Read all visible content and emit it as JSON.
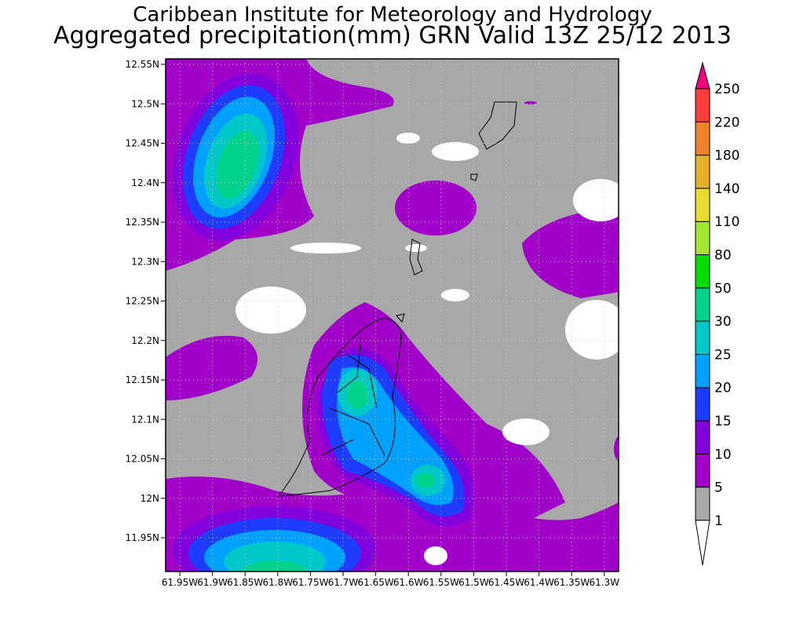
{
  "header": {
    "title_line1": "Caribbean Institute for Meteorology and Hydrology",
    "title_line2": "Aggregated precipitation(mm) GRN Valid 13Z 25/12 2013"
  },
  "map": {
    "lat_labels": [
      "12.55N",
      "12.5N",
      "12.45N",
      "12.4N",
      "12.35N",
      "12.3N",
      "12.25N",
      "12.2N",
      "12.15N",
      "12.1N",
      "12.05N",
      "12N",
      "11.95N"
    ],
    "lon_labels": [
      "61.95W",
      "61.9W",
      "61.85W",
      "61.8W",
      "61.75W",
      "61.7W",
      "61.65W",
      "61.6W",
      "61.55W",
      "61.5W",
      "61.45W",
      "61.4W",
      "61.35W",
      "61.3W"
    ]
  },
  "colorbar": {
    "levels": [
      "1",
      "5",
      "10",
      "15",
      "20",
      "25",
      "30",
      "50",
      "80",
      "110",
      "140",
      "180",
      "220",
      "250"
    ],
    "colors": [
      "#a8a8a8",
      "#a000c8",
      "#8200dc",
      "#1e3cff",
      "#00a0ff",
      "#00c8c8",
      "#00d28c",
      "#00dc00",
      "#a0e632",
      "#e6dc32",
      "#e6af2d",
      "#f08228",
      "#fa3c3c"
    ],
    "over_color": "#f00082",
    "under_color": "#ffffff"
  }
}
